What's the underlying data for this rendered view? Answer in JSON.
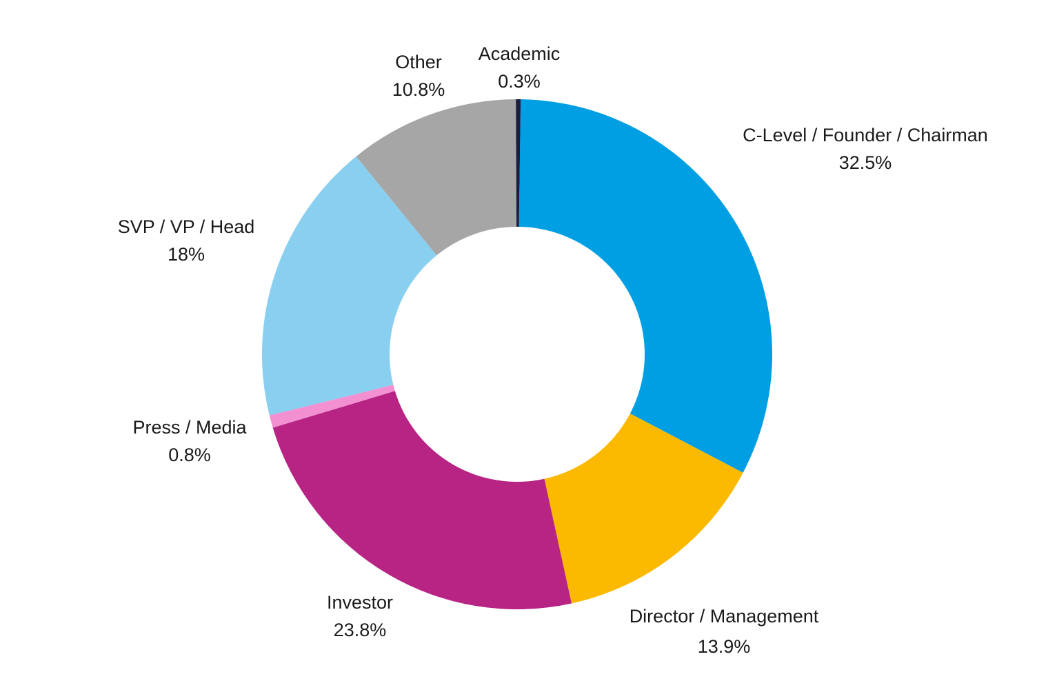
{
  "chart_data": {
    "type": "pie",
    "variant": "donut",
    "title": "",
    "start": "top",
    "direction": "clockwise",
    "slices": [
      {
        "label": "C-Level / Founder / Chairman",
        "value": 32.5,
        "display": "32.5%",
        "color": "#009FE3"
      },
      {
        "label": "Director / Management",
        "value": 13.9,
        "display": "13.9%",
        "color": "#FBB900"
      },
      {
        "label": "Investor",
        "value": 23.8,
        "display": "23.8%",
        "color": "#B72483"
      },
      {
        "label": "Press / Media",
        "value": 0.8,
        "display": "0.8%",
        "color": "#F290D2"
      },
      {
        "label": "SVP / VP / Head",
        "value": 18,
        "display": "18%",
        "color": "#89CFF0"
      },
      {
        "label": "Other",
        "value": 10.8,
        "display": "10.8%",
        "color": "#A6A6A6"
      },
      {
        "label": "Academic",
        "value": 0.3,
        "display": "0.3%",
        "color": "#1D1D3B"
      }
    ]
  }
}
